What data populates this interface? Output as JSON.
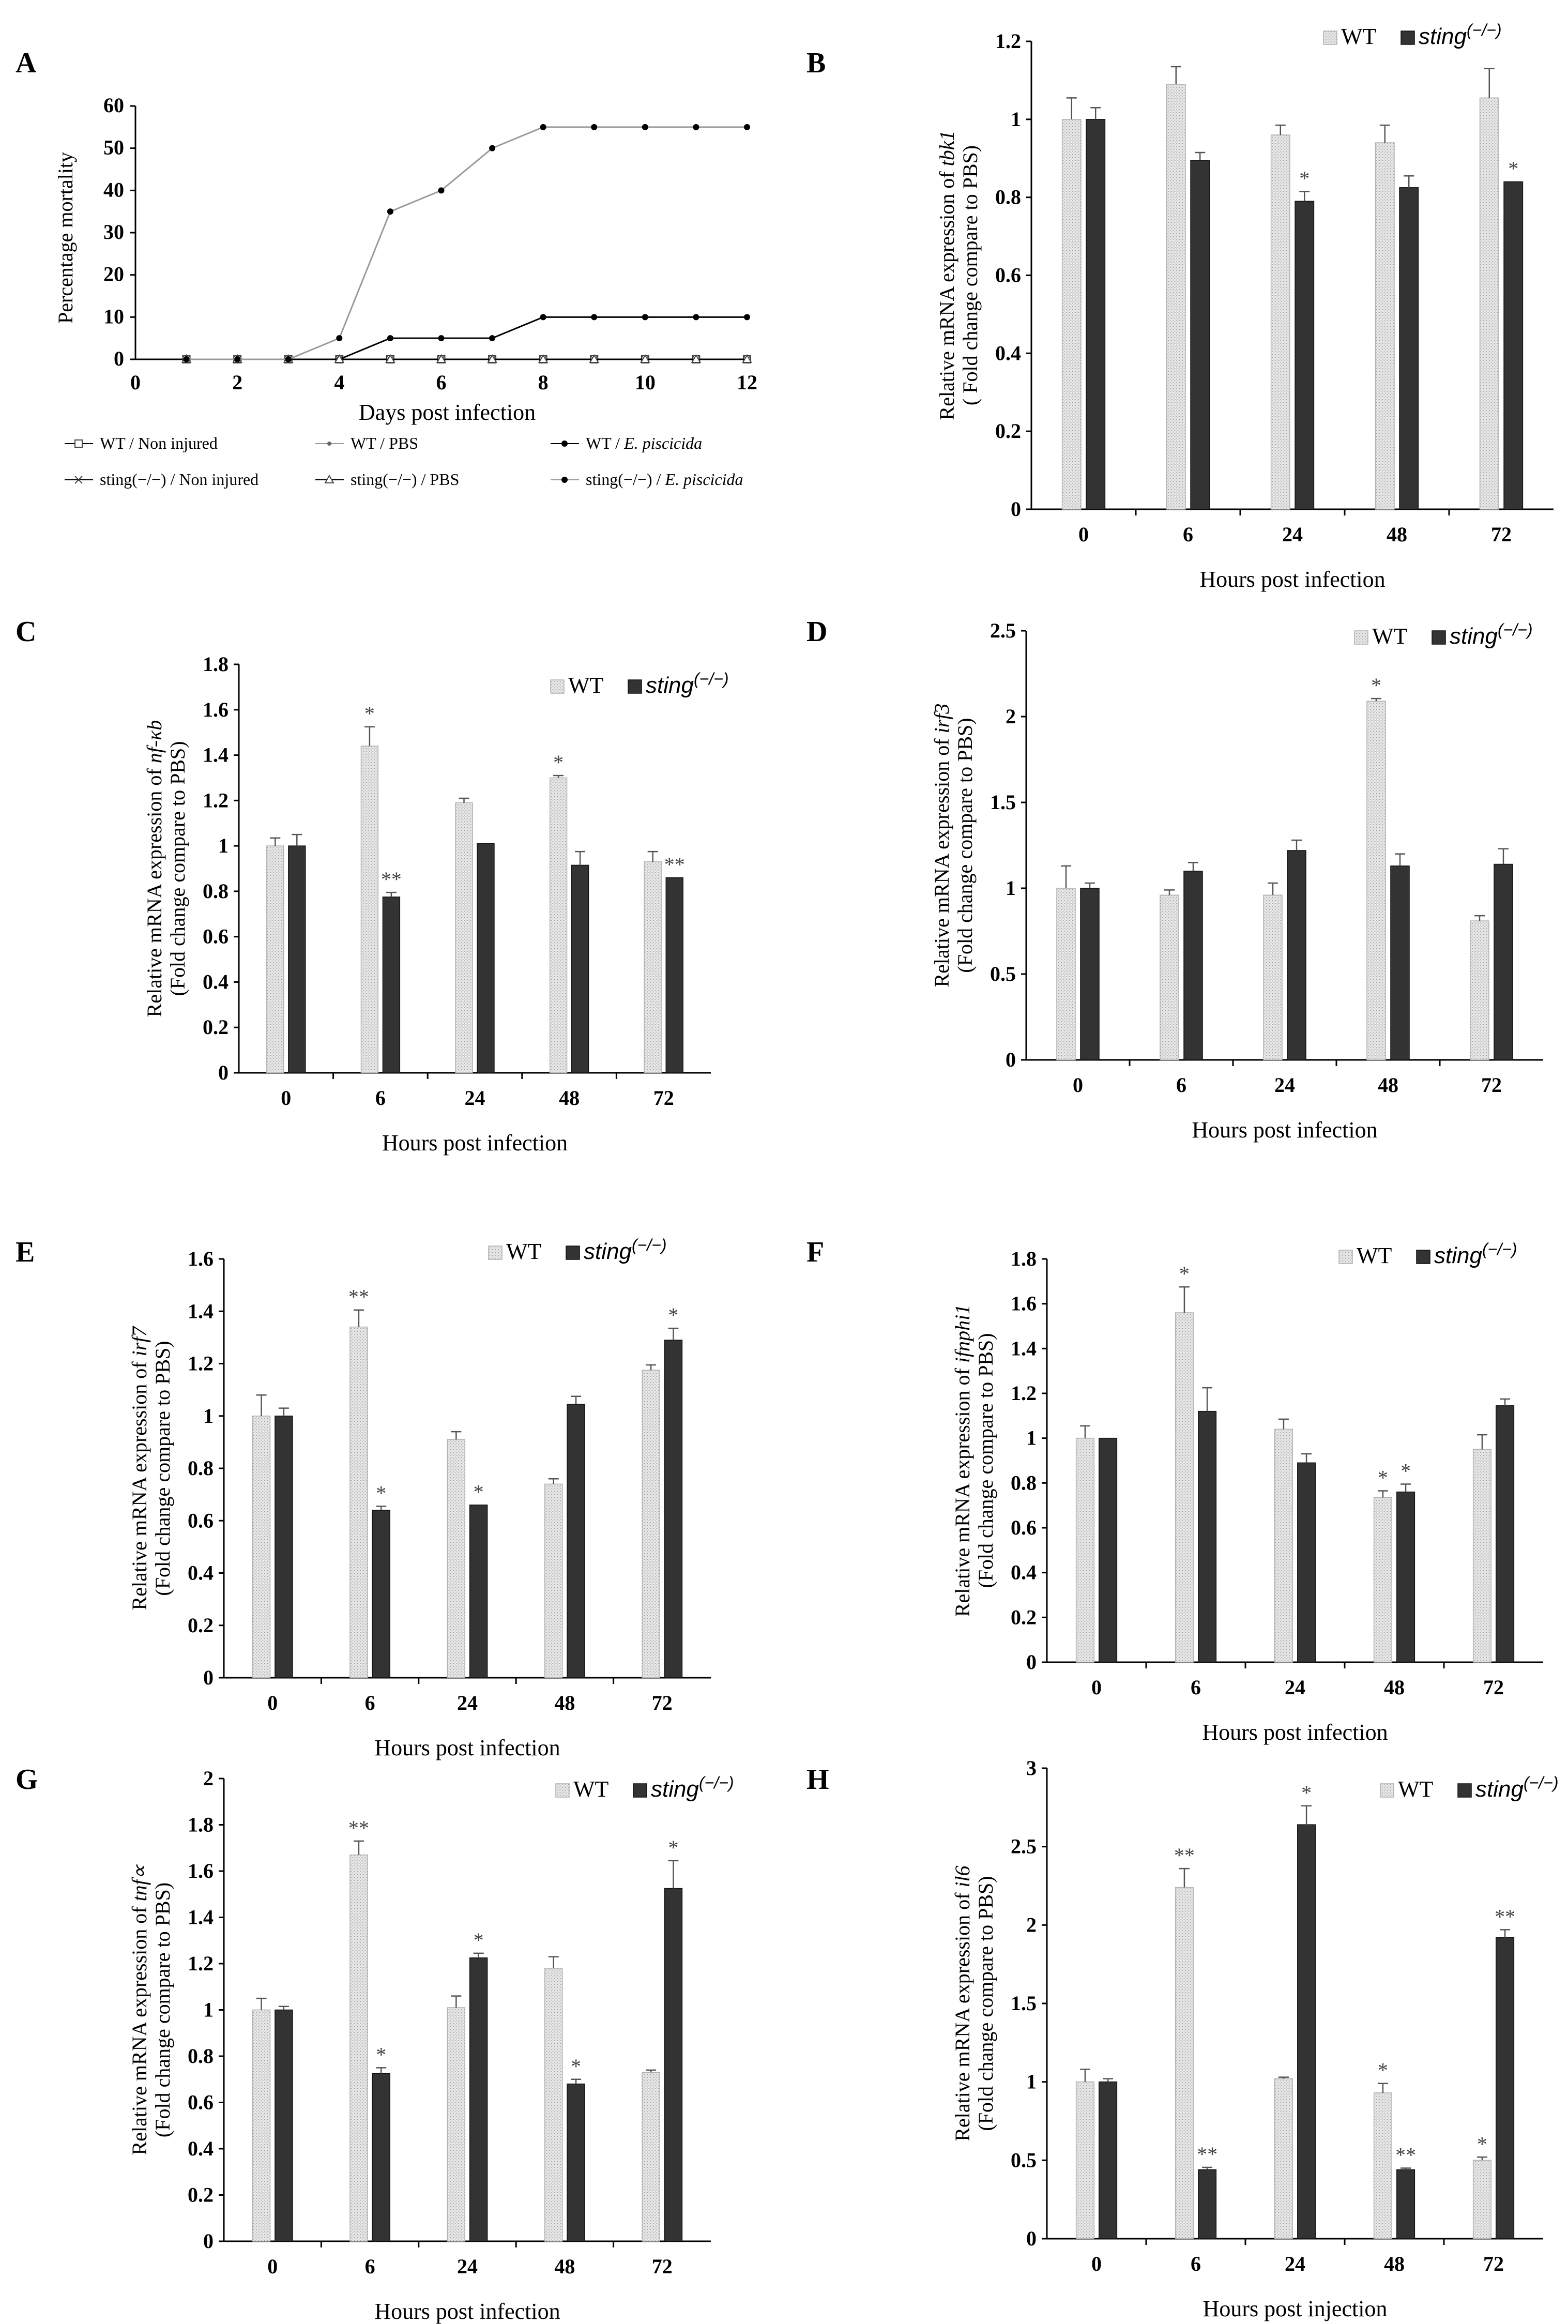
{
  "colors": {
    "wt_fill": "#d9d9d9",
    "ko_fill": "#333333",
    "axis": "#000000",
    "line_gray": "#9a9a9a"
  },
  "chart_data": [
    {
      "panel": "A",
      "type": "line",
      "xlabel": "Days post infection",
      "ylabel": "Percentage mortality",
      "xlim": [
        0,
        12
      ],
      "ylim": [
        0,
        60
      ],
      "xticks": [
        "0",
        "2",
        "4",
        "6",
        "8",
        "10",
        "12"
      ],
      "yticks": [
        "0",
        "10",
        "20",
        "30",
        "40",
        "50",
        "60"
      ],
      "x": [
        1,
        2,
        3,
        4,
        5,
        6,
        7,
        8,
        9,
        10,
        11,
        12
      ],
      "series": [
        {
          "name": "WT / Non injured",
          "marker": "square",
          "values": [
            0,
            0,
            0,
            0,
            0,
            0,
            0,
            0,
            0,
            0,
            0,
            0
          ]
        },
        {
          "name": "WT / PBS",
          "marker": "diamond",
          "values": [
            0,
            0,
            0,
            0,
            0,
            0,
            0,
            0,
            0,
            0,
            0,
            0
          ]
        },
        {
          "name": "WT / E. piscicida",
          "marker": "dot",
          "values": [
            0,
            0,
            0,
            0,
            5,
            5,
            5,
            10,
            10,
            10,
            10,
            10
          ]
        },
        {
          "name": "sting(−/−) / Non injured",
          "marker": "x",
          "values": [
            0,
            0,
            0,
            0,
            0,
            0,
            0,
            0,
            0,
            0,
            0,
            0
          ]
        },
        {
          "name": "sting(−/−) / PBS",
          "marker": "triangle",
          "values": [
            0,
            0,
            0,
            0,
            0,
            0,
            0,
            0,
            0,
            0,
            0,
            0
          ]
        },
        {
          "name": "sting(−/−) / E. piscicida",
          "marker": "dot",
          "values": [
            0,
            0,
            0,
            5,
            35,
            40,
            50,
            55,
            55,
            55,
            55,
            55
          ]
        }
      ],
      "legend": [
        {
          "pre": "WT / Non injured",
          "ital": ""
        },
        {
          "pre": "WT / PBS",
          "ital": ""
        },
        {
          "pre": "WT / ",
          "ital": "E. piscicida"
        },
        {
          "pre": "sting(−/−) / Non injured",
          "ital": ""
        },
        {
          "pre": "sting(−/−) /  PBS",
          "ital": ""
        },
        {
          "pre": "sting(−/−) / ",
          "ital": "E. piscicida"
        }
      ]
    },
    {
      "panel": "B",
      "type": "bar",
      "gene": "tbk1",
      "ylabel_prefix": "Relative mRNA expression of ",
      "ylabel2": "( Fold change compare to PBS)",
      "xlabel": "Hours post infection",
      "categories": [
        "0",
        "6",
        "24",
        "48",
        "72"
      ],
      "yticks": [
        "0",
        "0.2",
        "0.4",
        "0.6",
        "0.8",
        "1",
        "1.2"
      ],
      "ylim": [
        0,
        1.2
      ],
      "series": [
        {
          "name": "WT",
          "values": [
            1.0,
            1.09,
            0.96,
            0.94,
            1.055
          ],
          "errors": [
            0.055,
            0.045,
            0.025,
            0.045,
            0.075
          ],
          "stars": [
            "",
            "",
            "",
            "",
            ""
          ]
        },
        {
          "name": "sting(−/−)",
          "values": [
            1.0,
            0.895,
            0.79,
            0.825,
            0.84
          ],
          "errors": [
            0.03,
            0.02,
            0.025,
            0.03,
            0.0
          ],
          "stars": [
            "",
            "",
            "*",
            "",
            "*"
          ]
        }
      ]
    },
    {
      "panel": "C",
      "type": "bar",
      "gene": "nf-κb",
      "ylabel_prefix": "Relative mRNA expression of ",
      "ylabel2": "(Fold change compare to PBS)",
      "xlabel": "Hours post infection",
      "categories": [
        "0",
        "6",
        "24",
        "48",
        "72"
      ],
      "yticks": [
        "0",
        "0.2",
        "0.4",
        "0.6",
        "0.8",
        "1",
        "1.2",
        "1.4",
        "1.6",
        "1.8"
      ],
      "ylim": [
        0,
        1.8
      ],
      "series": [
        {
          "name": "WT",
          "values": [
            1.0,
            1.44,
            1.19,
            1.3,
            0.93
          ],
          "errors": [
            0.035,
            0.085,
            0.02,
            0.01,
            0.045
          ],
          "stars": [
            "",
            "*",
            "",
            "*",
            ""
          ]
        },
        {
          "name": "sting(−/−)",
          "values": [
            1.0,
            0.775,
            1.01,
            0.915,
            0.86
          ],
          "errors": [
            0.05,
            0.02,
            0.0,
            0.06,
            0.0
          ],
          "stars": [
            "",
            "**",
            "",
            "",
            "**"
          ]
        }
      ]
    },
    {
      "panel": "D",
      "type": "bar",
      "gene": "irf3",
      "ylabel_prefix": "Relative mRNA expression of ",
      "ylabel2": "(Fold change compare to PBS)",
      "xlabel": "Hours post infection",
      "categories": [
        "0",
        "6",
        "24",
        "48",
        "72"
      ],
      "yticks": [
        "0",
        "0.5",
        "1",
        "1.5",
        "2",
        "2.5"
      ],
      "ylim": [
        0,
        2.5
      ],
      "series": [
        {
          "name": "WT",
          "values": [
            1.0,
            0.96,
            0.96,
            2.09,
            0.81
          ],
          "errors": [
            0.13,
            0.03,
            0.07,
            0.015,
            0.03
          ],
          "stars": [
            "",
            "",
            "",
            "*",
            ""
          ]
        },
        {
          "name": "sting(−/−)",
          "values": [
            1.0,
            1.1,
            1.22,
            1.13,
            1.14
          ],
          "errors": [
            0.03,
            0.05,
            0.06,
            0.07,
            0.09
          ],
          "stars": [
            "",
            "",
            "",
            "",
            ""
          ]
        }
      ]
    },
    {
      "panel": "E",
      "type": "bar",
      "gene": "irf7",
      "ylabel_prefix": "Relative mRNA expression of ",
      "ylabel2": "(Fold change compare to PBS)",
      "xlabel": "Hours post infection",
      "categories": [
        "0",
        "6",
        "24",
        "48",
        "72"
      ],
      "yticks": [
        "0",
        "0.2",
        "0.4",
        "0.6",
        "0.8",
        "1",
        "1.2",
        "1.4",
        "1.6"
      ],
      "ylim": [
        0,
        1.6
      ],
      "series": [
        {
          "name": "WT",
          "values": [
            1.0,
            1.34,
            0.91,
            0.74,
            1.175
          ],
          "errors": [
            0.08,
            0.065,
            0.03,
            0.02,
            0.02
          ],
          "stars": [
            "",
            "**",
            "",
            "",
            ""
          ]
        },
        {
          "name": "sting(−/−)",
          "values": [
            1.0,
            0.64,
            0.66,
            1.045,
            1.29
          ],
          "errors": [
            0.03,
            0.015,
            0.0,
            0.03,
            0.045
          ],
          "stars": [
            "",
            "*",
            "*",
            "",
            "*"
          ]
        }
      ]
    },
    {
      "panel": "F",
      "type": "bar",
      "gene": "ifnphi1",
      "ylabel_prefix": "Relative mRNA expression of ",
      "ylabel2": "(Fold change compare to PBS)",
      "xlabel": "Hours post infection",
      "categories": [
        "0",
        "6",
        "24",
        "48",
        "72"
      ],
      "yticks": [
        "0",
        "0.2",
        "0.4",
        "0.6",
        "0.8",
        "1",
        "1.2",
        "1.4",
        "1.6",
        "1.8"
      ],
      "ylim": [
        0,
        1.8
      ],
      "series": [
        {
          "name": "WT",
          "values": [
            1.0,
            1.56,
            1.04,
            0.735,
            0.95
          ],
          "errors": [
            0.055,
            0.115,
            0.045,
            0.03,
            0.065
          ],
          "stars": [
            "",
            "*",
            "",
            "*",
            ""
          ]
        },
        {
          "name": "sting(−/−)",
          "values": [
            1.0,
            1.12,
            0.89,
            0.76,
            1.145
          ],
          "errors": [
            0.0,
            0.105,
            0.04,
            0.035,
            0.03
          ],
          "stars": [
            "",
            "",
            "",
            "*",
            ""
          ]
        }
      ]
    },
    {
      "panel": "G",
      "type": "bar",
      "gene": "tnf∝",
      "ylabel_prefix": "Relative mRNA expression of ",
      "ylabel2": "(Fold change compare to PBS)",
      "xlabel": "Hours post infection",
      "categories": [
        "0",
        "6",
        "24",
        "48",
        "72"
      ],
      "yticks": [
        "0",
        "0.2",
        "0.4",
        "0.6",
        "0.8",
        "1",
        "1.2",
        "1.4",
        "1.6",
        "1.8",
        "2"
      ],
      "ylim": [
        0,
        2
      ],
      "series": [
        {
          "name": "WT",
          "values": [
            1.0,
            1.67,
            1.01,
            1.18,
            0.73
          ],
          "errors": [
            0.05,
            0.06,
            0.05,
            0.05,
            0.01
          ],
          "stars": [
            "",
            "**",
            "",
            "",
            ""
          ]
        },
        {
          "name": "sting(−/−)",
          "values": [
            1.0,
            0.725,
            1.225,
            0.68,
            1.525
          ],
          "errors": [
            0.015,
            0.025,
            0.02,
            0.02,
            0.12
          ],
          "stars": [
            "",
            "*",
            "*",
            "*",
            "*"
          ]
        }
      ]
    },
    {
      "panel": "H",
      "type": "bar",
      "gene": "il6",
      "ylabel_prefix": "Relative mRNA expression of ",
      "ylabel2": "(Fold change compare to PBS)",
      "xlabel": "Hours post injection",
      "categories": [
        "0",
        "6",
        "24",
        "48",
        "72"
      ],
      "yticks": [
        "0",
        "0.5",
        "1",
        "1.5",
        "2",
        "2.5",
        "3"
      ],
      "ylim": [
        0,
        3
      ],
      "series": [
        {
          "name": "WT",
          "values": [
            1.0,
            2.24,
            1.02,
            0.93,
            0.5
          ],
          "errors": [
            0.08,
            0.12,
            0.01,
            0.06,
            0.02
          ],
          "stars": [
            "",
            "**",
            "",
            "*",
            "*"
          ]
        },
        {
          "name": "sting(−/−)",
          "values": [
            1.0,
            0.44,
            2.64,
            0.44,
            1.92
          ],
          "errors": [
            0.02,
            0.015,
            0.12,
            0.01,
            0.05
          ],
          "stars": [
            "",
            "**",
            "*",
            "**",
            "**"
          ]
        }
      ]
    }
  ],
  "legend": {
    "wt": "WT",
    "ko_base": "sting",
    "ko_sup": "(−/−)"
  }
}
